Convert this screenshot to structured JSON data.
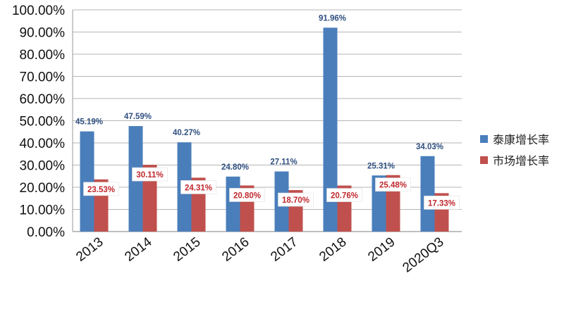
{
  "chart_data": {
    "type": "bar",
    "categories": [
      "2013",
      "2014",
      "2015",
      "2016",
      "2017",
      "2018",
      "2019",
      "2020Q3"
    ],
    "series": [
      {
        "name": "泰康增长率",
        "values": [
          45.19,
          47.59,
          40.27,
          24.8,
          27.11,
          91.96,
          25.31,
          34.03
        ],
        "labels": [
          "45.19%",
          "47.59%",
          "40.27%",
          "24.80%",
          "27.11%",
          "91.96%",
          "25.31%",
          "34.03%"
        ],
        "color": "#4a7ebb"
      },
      {
        "name": "市场增长率",
        "values": [
          23.53,
          30.11,
          24.31,
          20.8,
          18.7,
          20.76,
          25.48,
          17.33
        ],
        "labels": [
          "23.53%",
          "30.11%",
          "24.31%",
          "20.80%",
          "18.70%",
          "20.76%",
          "25.48%",
          "17.33%"
        ],
        "color": "#c0504d"
      }
    ],
    "yticks": [
      "0.00%",
      "10.00%",
      "20.00%",
      "30.00%",
      "40.00%",
      "50.00%",
      "60.00%",
      "70.00%",
      "80.00%",
      "90.00%",
      "100.00%"
    ],
    "ylim": [
      0,
      100
    ],
    "grid": true,
    "legend_position": "right"
  }
}
